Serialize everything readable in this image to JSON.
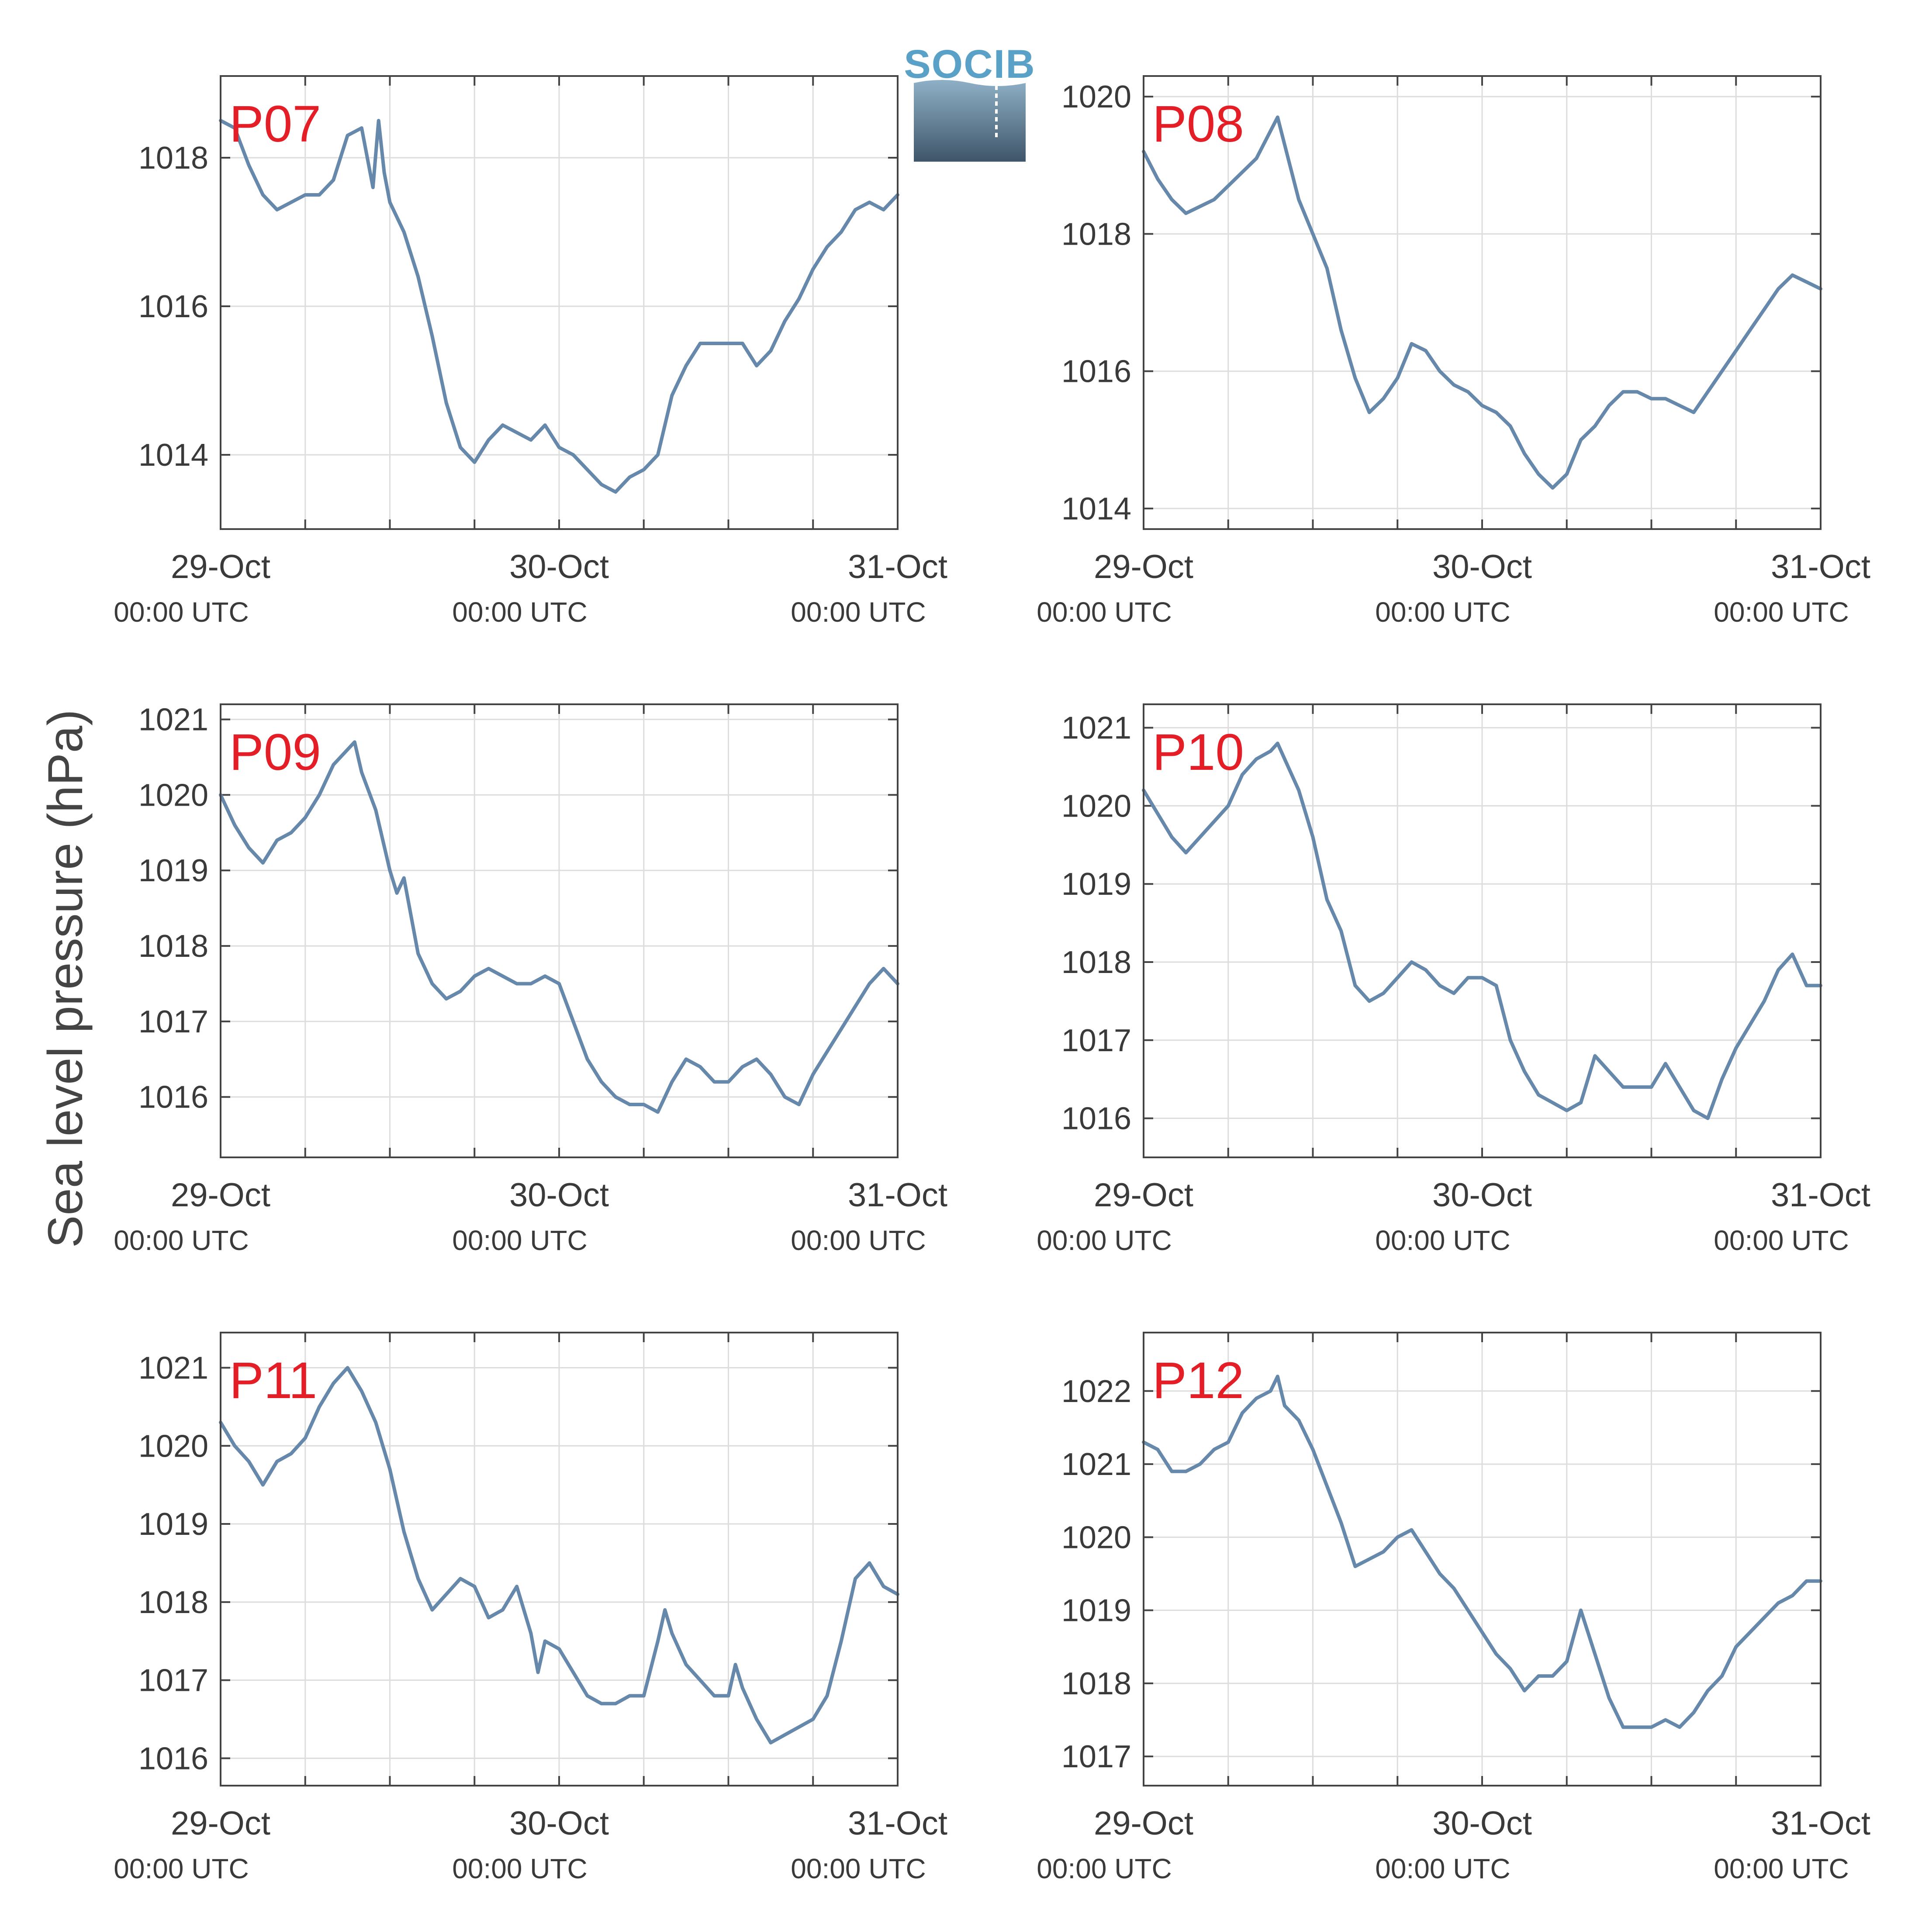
{
  "colors": {
    "line": "#6688aa",
    "panel_label": "#e41e26",
    "grid": "#dddddd",
    "axis": "#444444",
    "logo_text": "#5aa1c8",
    "logo_top": "#8eb0c6",
    "logo_bottom": "#3f5569"
  },
  "logo": {
    "text": "SOCIB"
  },
  "chart_data": {
    "type": "line",
    "ylabel": "Sea level pressure (hPa)",
    "x_ticks": [
      {
        "date": "29-Oct",
        "time": "00:00 UTC"
      },
      {
        "date": "30-Oct",
        "time": "00:00 UTC"
      },
      {
        "date": "31-Oct",
        "time": "00:00 UTC"
      }
    ],
    "xlim": [
      "2019-10-29 00:00",
      "2019-10-31 00:00"
    ],
    "x_minor_interval_hours": 6,
    "grid": true,
    "panels": [
      {
        "name": "P07",
        "ylim": [
          1013,
          1019.1
        ],
        "yticks": [
          1014,
          1016,
          1018
        ],
        "times_h": [
          0,
          1,
          2,
          3,
          4,
          5,
          6,
          7,
          8,
          9,
          10,
          10.8,
          11.2,
          11.6,
          12,
          13,
          14,
          15,
          16,
          17,
          18,
          19,
          20,
          21,
          22,
          23,
          24,
          25,
          26,
          27,
          28,
          29,
          30,
          31,
          32,
          33,
          34,
          35,
          36,
          37,
          38,
          39,
          40,
          41,
          42,
          43,
          44,
          45,
          46,
          47,
          48
        ],
        "values": [
          1018.5,
          1018.4,
          1017.9,
          1017.5,
          1017.3,
          1017.4,
          1017.5,
          1017.5,
          1017.7,
          1018.3,
          1018.4,
          1017.6,
          1018.5,
          1017.8,
          1017.4,
          1017.0,
          1016.4,
          1015.6,
          1014.7,
          1014.1,
          1013.9,
          1014.2,
          1014.4,
          1014.3,
          1014.2,
          1014.4,
          1014.1,
          1014.0,
          1013.8,
          1013.6,
          1013.5,
          1013.7,
          1013.8,
          1014.0,
          1014.8,
          1015.2,
          1015.5,
          1015.5,
          1015.5,
          1015.5,
          1015.2,
          1015.4,
          1015.8,
          1016.1,
          1016.5,
          1016.8,
          1017.0,
          1017.3,
          1017.4,
          1017.3,
          1017.5
        ]
      },
      {
        "name": "P08",
        "ylim": [
          1013.7,
          1020.3
        ],
        "yticks": [
          1014,
          1016,
          1018,
          1020
        ],
        "times_h": [
          0,
          1,
          2,
          3,
          4,
          5,
          6,
          7,
          8,
          9,
          9.5,
          10,
          11,
          12,
          13,
          14,
          15,
          16,
          17,
          18,
          19,
          20,
          21,
          22,
          23,
          24,
          25,
          26,
          27,
          28,
          29,
          30,
          31,
          32,
          33,
          34,
          35,
          36,
          37,
          38,
          39,
          40,
          41,
          42,
          43,
          44,
          45,
          46,
          47,
          48
        ],
        "values": [
          1019.2,
          1018.8,
          1018.5,
          1018.3,
          1018.4,
          1018.5,
          1018.7,
          1018.9,
          1019.1,
          1019.5,
          1019.7,
          1019.3,
          1018.5,
          1018.0,
          1017.5,
          1016.6,
          1015.9,
          1015.4,
          1015.6,
          1015.9,
          1016.4,
          1016.3,
          1016.0,
          1015.8,
          1015.7,
          1015.5,
          1015.4,
          1015.2,
          1014.8,
          1014.5,
          1014.3,
          1014.5,
          1015.0,
          1015.2,
          1015.5,
          1015.7,
          1015.7,
          1015.6,
          1015.6,
          1015.5,
          1015.4,
          1015.7,
          1016.0,
          1016.3,
          1016.6,
          1016.9,
          1017.2,
          1017.4,
          1017.3,
          1017.2
        ]
      },
      {
        "name": "P09",
        "ylim": [
          1015.2,
          1021.2
        ],
        "yticks": [
          1016,
          1017,
          1018,
          1019,
          1020,
          1021
        ],
        "times_h": [
          0,
          1,
          2,
          3,
          4,
          5,
          6,
          7,
          8,
          9,
          9.5,
          10,
          11,
          12,
          12.5,
          13,
          14,
          15,
          16,
          17,
          18,
          19,
          20,
          21,
          22,
          23,
          24,
          25,
          26,
          27,
          28,
          29,
          30,
          31,
          32,
          33,
          34,
          35,
          36,
          37,
          38,
          39,
          40,
          41,
          42,
          43,
          44,
          45,
          46,
          47,
          48
        ],
        "values": [
          1020.0,
          1019.6,
          1019.3,
          1019.1,
          1019.4,
          1019.5,
          1019.7,
          1020.0,
          1020.4,
          1020.6,
          1020.7,
          1020.3,
          1019.8,
          1019.0,
          1018.7,
          1018.9,
          1017.9,
          1017.5,
          1017.3,
          1017.4,
          1017.6,
          1017.7,
          1017.6,
          1017.5,
          1017.5,
          1017.6,
          1017.5,
          1017.0,
          1016.5,
          1016.2,
          1016.0,
          1015.9,
          1015.9,
          1015.8,
          1016.2,
          1016.5,
          1016.4,
          1016.2,
          1016.2,
          1016.4,
          1016.5,
          1016.3,
          1016.0,
          1015.9,
          1016.3,
          1016.6,
          1016.9,
          1017.2,
          1017.5,
          1017.7,
          1017.5
        ]
      },
      {
        "name": "P10",
        "ylim": [
          1015.5,
          1021.3
        ],
        "yticks": [
          1016,
          1017,
          1018,
          1019,
          1020,
          1021
        ],
        "times_h": [
          0,
          1,
          2,
          3,
          4,
          5,
          6,
          7,
          8,
          9,
          9.5,
          10,
          11,
          12,
          13,
          14,
          15,
          16,
          17,
          18,
          19,
          20,
          21,
          22,
          23,
          24,
          25,
          26,
          27,
          28,
          29,
          30,
          31,
          32,
          33,
          34,
          35,
          36,
          37,
          38,
          39,
          40,
          41,
          42,
          43,
          44,
          45,
          46,
          47,
          48
        ],
        "values": [
          1020.2,
          1019.9,
          1019.6,
          1019.4,
          1019.6,
          1019.8,
          1020.0,
          1020.4,
          1020.6,
          1020.7,
          1020.8,
          1020.6,
          1020.2,
          1019.6,
          1018.8,
          1018.4,
          1017.7,
          1017.5,
          1017.6,
          1017.8,
          1018.0,
          1017.9,
          1017.7,
          1017.6,
          1017.8,
          1017.8,
          1017.7,
          1017.0,
          1016.6,
          1016.3,
          1016.2,
          1016.1,
          1016.2,
          1016.8,
          1016.6,
          1016.4,
          1016.4,
          1016.4,
          1016.7,
          1016.4,
          1016.1,
          1016.0,
          1016.5,
          1016.9,
          1017.2,
          1017.5,
          1017.9,
          1018.1,
          1017.7,
          1017.7
        ]
      },
      {
        "name": "P11",
        "ylim": [
          1015.65,
          1021.45
        ],
        "yticks": [
          1016,
          1017,
          1018,
          1019,
          1020,
          1021
        ],
        "times_h": [
          0,
          1,
          2,
          3,
          4,
          5,
          6,
          7,
          8,
          9,
          10,
          11,
          12,
          13,
          14,
          15,
          16,
          17,
          18,
          19,
          20,
          21,
          22,
          22.5,
          23,
          24,
          25,
          26,
          27,
          28,
          29,
          30,
          31,
          31.5,
          32,
          33,
          34,
          35,
          36,
          36.5,
          37,
          38,
          39,
          40,
          41,
          42,
          43,
          44,
          45,
          46,
          47,
          48
        ],
        "values": [
          1020.3,
          1020.0,
          1019.8,
          1019.5,
          1019.8,
          1019.9,
          1020.1,
          1020.5,
          1020.8,
          1021.0,
          1020.7,
          1020.3,
          1019.7,
          1018.9,
          1018.3,
          1017.9,
          1018.1,
          1018.3,
          1018.2,
          1017.8,
          1017.9,
          1018.2,
          1017.6,
          1017.1,
          1017.5,
          1017.4,
          1017.1,
          1016.8,
          1016.7,
          1016.7,
          1016.8,
          1016.8,
          1017.5,
          1017.9,
          1017.6,
          1017.2,
          1017.0,
          1016.8,
          1016.8,
          1017.2,
          1016.9,
          1016.5,
          1016.2,
          1016.3,
          1016.4,
          1016.5,
          1016.8,
          1017.5,
          1018.3,
          1018.5,
          1018.2,
          1018.1
        ]
      },
      {
        "name": "P12",
        "ylim": [
          1016.6,
          1022.8
        ],
        "yticks": [
          1017,
          1018,
          1019,
          1020,
          1021,
          1022
        ],
        "times_h": [
          0,
          1,
          2,
          3,
          4,
          5,
          6,
          7,
          8,
          9,
          9.5,
          10,
          11,
          12,
          13,
          14,
          15,
          16,
          17,
          18,
          19,
          20,
          21,
          22,
          23,
          24,
          25,
          26,
          27,
          28,
          29,
          30,
          31,
          32,
          33,
          34,
          35,
          36,
          37,
          38,
          39,
          40,
          41,
          42,
          43,
          44,
          45,
          46,
          47,
          48
        ],
        "values": [
          1021.3,
          1021.2,
          1020.9,
          1020.9,
          1021.0,
          1021.2,
          1021.3,
          1021.7,
          1021.9,
          1022.0,
          1022.2,
          1021.8,
          1021.6,
          1021.2,
          1020.7,
          1020.2,
          1019.6,
          1019.7,
          1019.8,
          1020.0,
          1020.1,
          1019.8,
          1019.5,
          1019.3,
          1019.0,
          1018.7,
          1018.4,
          1018.2,
          1017.9,
          1018.1,
          1018.1,
          1018.3,
          1019.0,
          1018.4,
          1017.8,
          1017.4,
          1017.4,
          1017.4,
          1017.5,
          1017.4,
          1017.6,
          1017.9,
          1018.1,
          1018.5,
          1018.7,
          1018.9,
          1019.1,
          1019.2,
          1019.4,
          1019.4
        ]
      }
    ]
  }
}
